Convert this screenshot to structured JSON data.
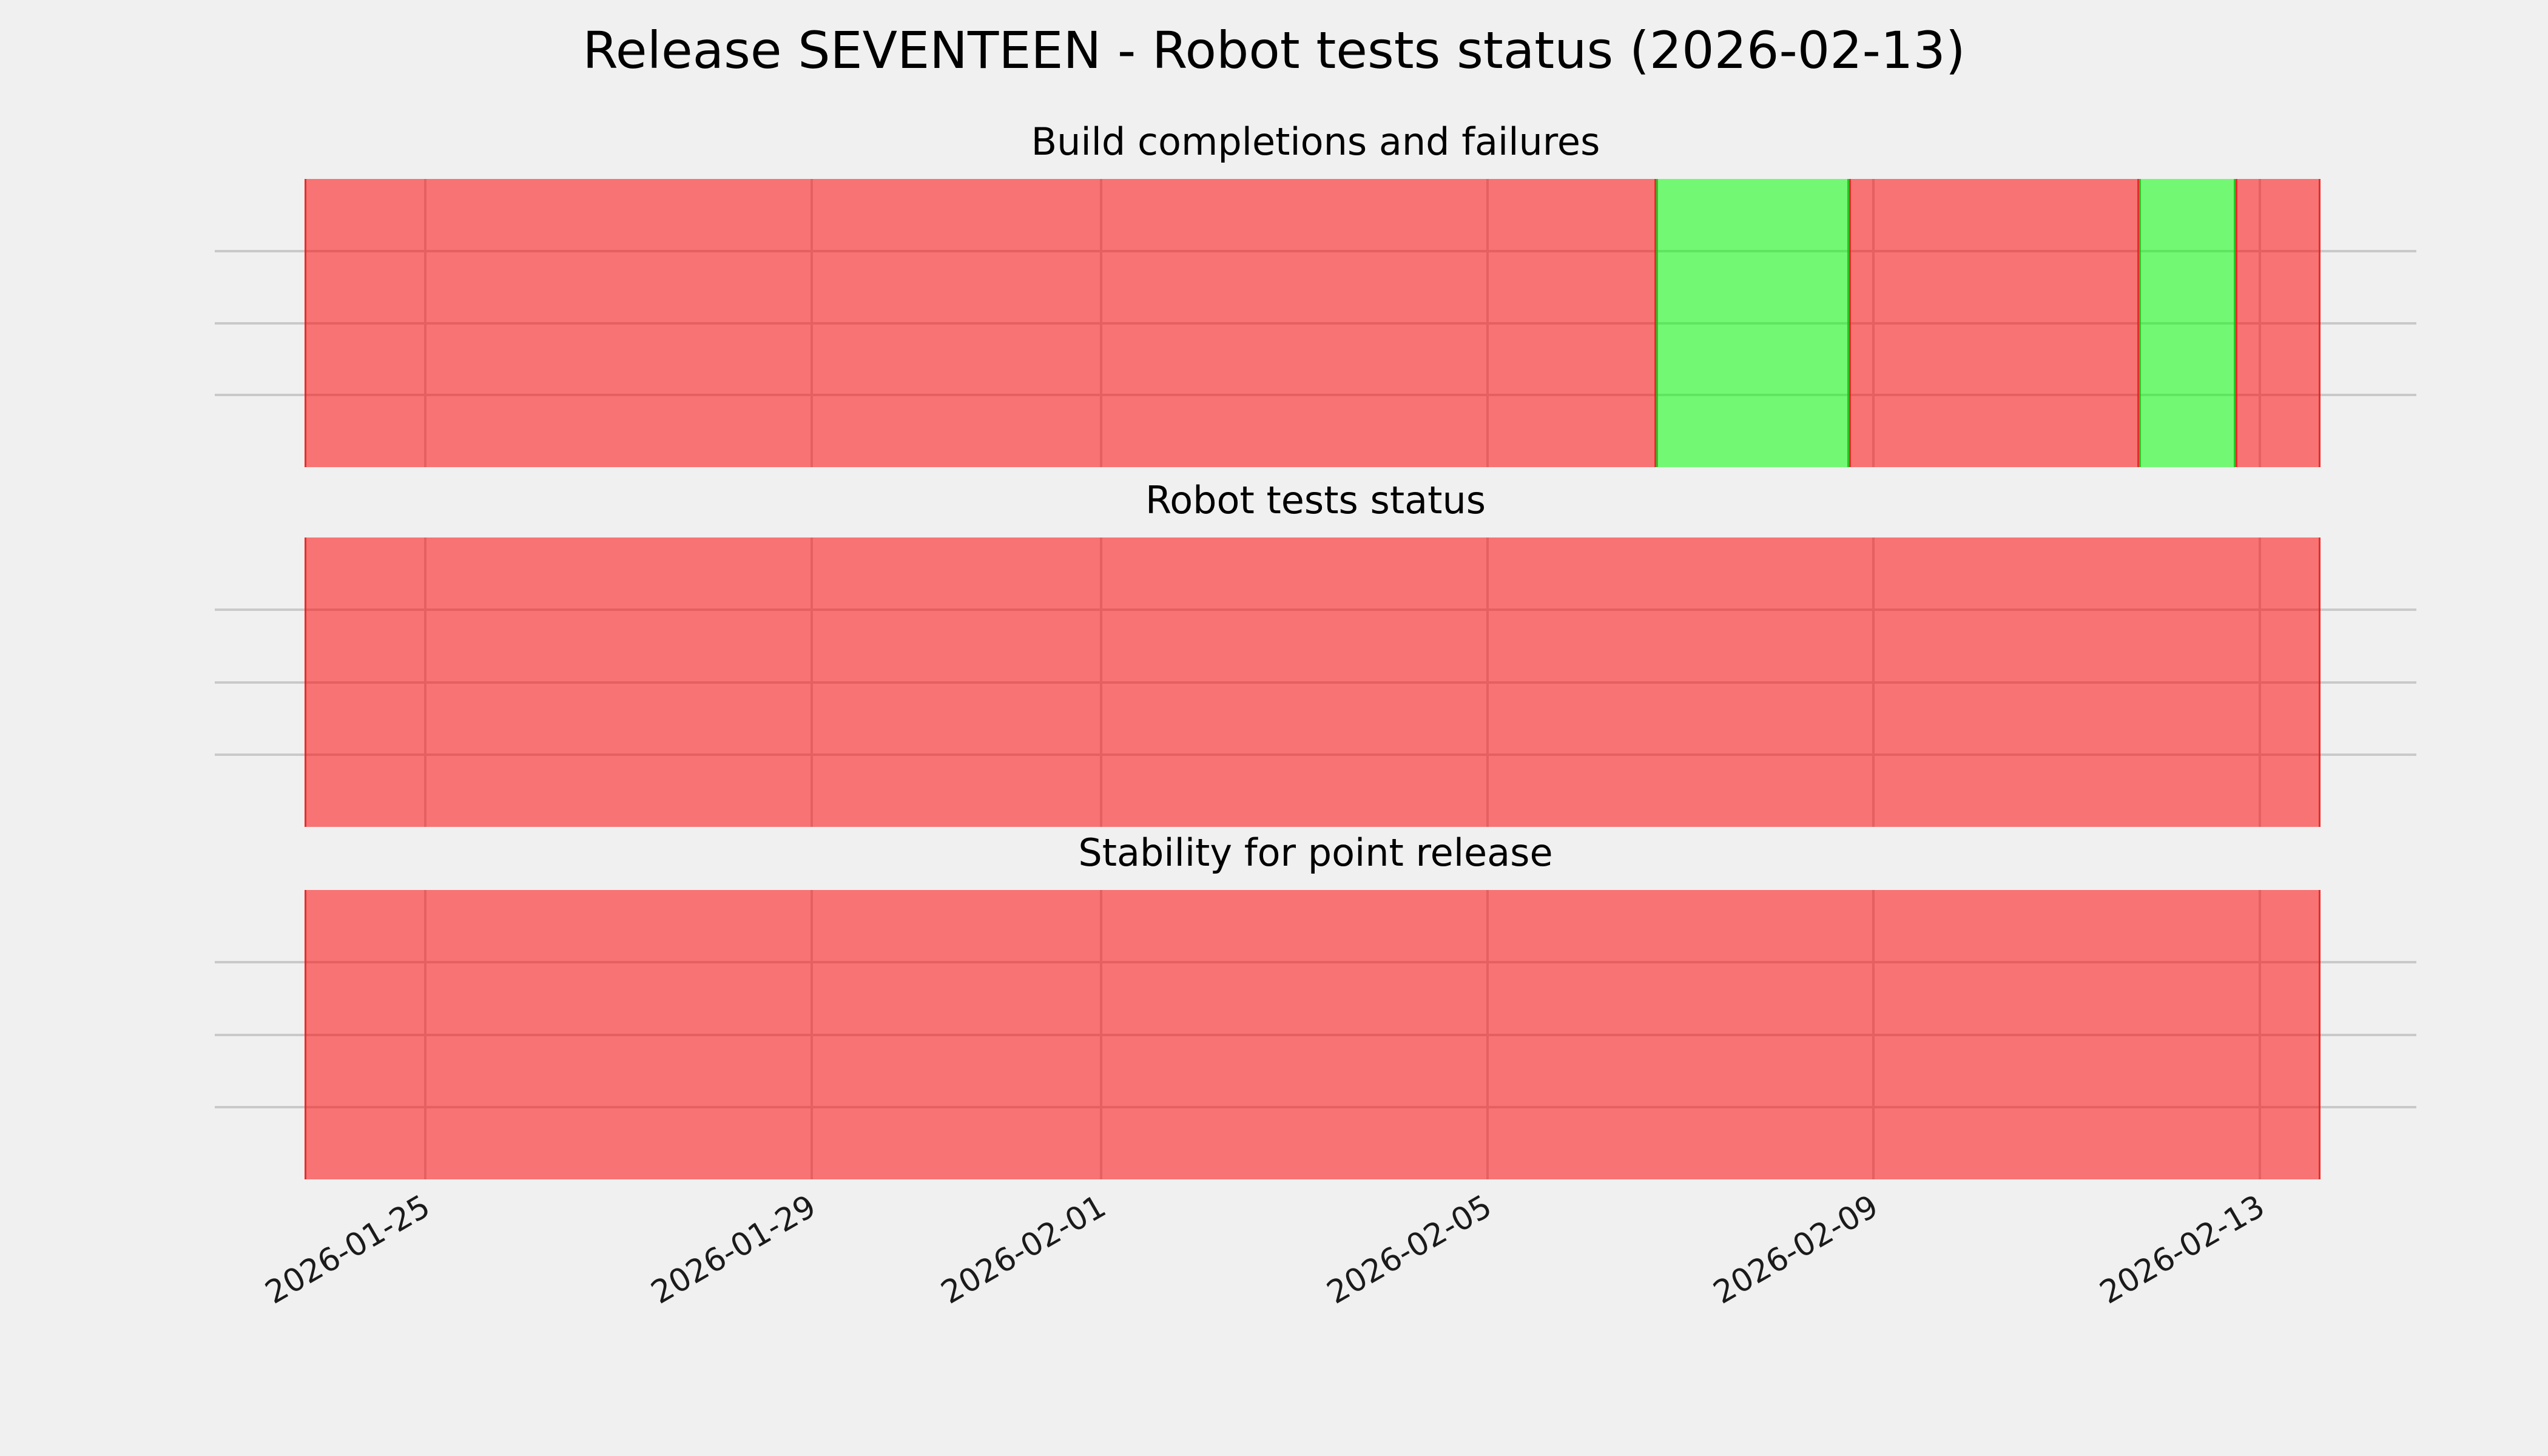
{
  "figure": {
    "title": "Release SEVENTEEN - Robot tests status (2026-02-13)",
    "background": "#f0f0f0"
  },
  "colors": {
    "fail_fill": "#f87373",
    "pass_fill": "#73f773",
    "fail_fill_rgba": "rgba(255,0,0,0.52)",
    "pass_fill_rgba": "rgba(0,255,0,0.52)",
    "fail_edge": "#e51a1a",
    "pass_edge": "#19be19",
    "gridline": "#c9c9c9",
    "background": "#f0f0f0",
    "text": "#000000"
  },
  "x_ticks": [
    "2026-01-25",
    "2026-01-29",
    "2026-02-01",
    "2026-02-05",
    "2026-02-09",
    "2026-02-13"
  ],
  "chart_data": [
    {
      "type": "bar",
      "title": "Build completions and failures",
      "categories": [
        "2026-01-24",
        "2026-01-25",
        "2026-01-26",
        "2026-01-27",
        "2026-01-28",
        "2026-01-29",
        "2026-01-30",
        "2026-01-31",
        "2026-02-01",
        "2026-02-02",
        "2026-02-03",
        "2026-02-04",
        "2026-02-05",
        "2026-02-06",
        "2026-02-07",
        "2026-02-08",
        "2026-02-09",
        "2026-02-10",
        "2026-02-11",
        "2026-02-12",
        "2026-02-13"
      ],
      "values": [
        "fail",
        "fail",
        "fail",
        "fail",
        "fail",
        "fail",
        "fail",
        "fail",
        "fail",
        "fail",
        "fail",
        "fail",
        "fail",
        "fail",
        "pass",
        "pass",
        "fail",
        "fail",
        "fail",
        "pass",
        "fail"
      ],
      "value_encoding": "full-height daily status bar, red=fail green=pass",
      "ylim": [
        0,
        1
      ],
      "bar_height": 1,
      "grid": true,
      "legend": "none",
      "x_tick_labels_shown": false
    },
    {
      "type": "bar",
      "title": "Robot tests status",
      "categories": [
        "2026-01-24",
        "2026-01-25",
        "2026-01-26",
        "2026-01-27",
        "2026-01-28",
        "2026-01-29",
        "2026-01-30",
        "2026-01-31",
        "2026-02-01",
        "2026-02-02",
        "2026-02-03",
        "2026-02-04",
        "2026-02-05",
        "2026-02-06",
        "2026-02-07",
        "2026-02-08",
        "2026-02-09",
        "2026-02-10",
        "2026-02-11",
        "2026-02-12",
        "2026-02-13"
      ],
      "values": [
        "fail",
        "fail",
        "fail",
        "fail",
        "fail",
        "fail",
        "fail",
        "fail",
        "fail",
        "fail",
        "fail",
        "fail",
        "fail",
        "fail",
        "fail",
        "fail",
        "fail",
        "fail",
        "fail",
        "fail",
        "fail"
      ],
      "value_encoding": "full-height daily status bar, red=fail green=pass",
      "ylim": [
        0,
        1
      ],
      "bar_height": 1,
      "grid": true,
      "legend": "none",
      "x_tick_labels_shown": false
    },
    {
      "type": "bar",
      "title": "Stability for point release",
      "categories": [
        "2026-01-24",
        "2026-01-25",
        "2026-01-26",
        "2026-01-27",
        "2026-01-28",
        "2026-01-29",
        "2026-01-30",
        "2026-01-31",
        "2026-02-01",
        "2026-02-02",
        "2026-02-03",
        "2026-02-04",
        "2026-02-05",
        "2026-02-06",
        "2026-02-07",
        "2026-02-08",
        "2026-02-09",
        "2026-02-10",
        "2026-02-11",
        "2026-02-12",
        "2026-02-13"
      ],
      "values": [
        "fail",
        "fail",
        "fail",
        "fail",
        "fail",
        "fail",
        "fail",
        "fail",
        "fail",
        "fail",
        "fail",
        "fail",
        "fail",
        "fail",
        "fail",
        "fail",
        "fail",
        "fail",
        "fail",
        "fail",
        "fail"
      ],
      "value_encoding": "full-height daily status bar, red=fail green=pass",
      "ylim": [
        0,
        1
      ],
      "bar_height": 1,
      "grid": true,
      "legend": "none",
      "x_tick_labels_shown": true,
      "x_tick_rotation_deg": 30
    }
  ]
}
